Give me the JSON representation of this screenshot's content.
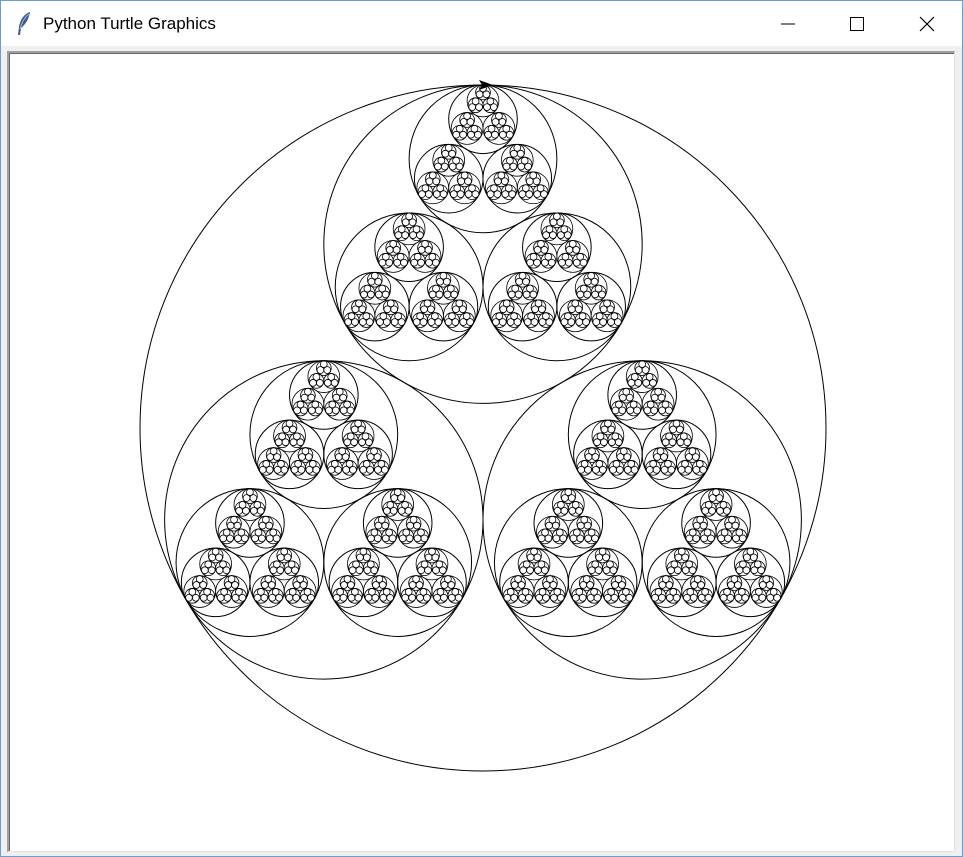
{
  "window": {
    "title": "Python Turtle Graphics",
    "app_icon": "feather-icon",
    "controls": {
      "minimize_icon": "minimize-icon",
      "maximize_icon": "maximize-icon",
      "close_icon": "close-icon"
    }
  },
  "canvas": {
    "background": "#ffffff",
    "stroke": "#000000",
    "fractal": {
      "shape": "nested circles",
      "children_per_circle": 3,
      "depth": 6
    },
    "turtle": {
      "shape": "arrow-cursor-icon",
      "heading": "east",
      "color": "#000000"
    }
  }
}
